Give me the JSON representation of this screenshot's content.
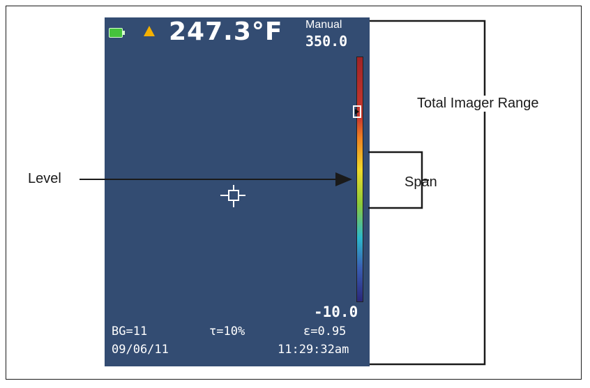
{
  "screen": {
    "temperature": "247.3°F",
    "mode": "Manual",
    "scale_max": "350.0",
    "scale_min": "-10.0",
    "bg": "BG=11",
    "transmission": "τ=10%",
    "emissivity": "ε=0.95",
    "date": "09/06/11",
    "time": "11:29:32am"
  },
  "callouts": {
    "level": "Level",
    "span": "Span",
    "total_range": "Total Imager Range"
  },
  "icons": [
    "battery-icon",
    "warning-icon",
    "crosshair-icon",
    "level-marker-icon"
  ],
  "colors": {
    "screen_background": "#334c72",
    "text": "#1a1a1a"
  }
}
